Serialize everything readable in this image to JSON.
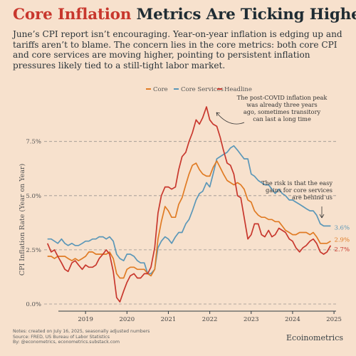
{
  "header": {
    "title_highlight": "Core Inflation",
    "title_rest": " Metrics Are Ticking Higher",
    "subtitle": "June’s CPI report isn’t encouraging. Year-on-year inflation is edging up and tariffs aren’t to blame. The concern lies in the core metrics: both core CPI and core services are moving higher, pointing to persistent inflation pressures likely tied to a still-tight labor market."
  },
  "footer": {
    "notes": "Notes: created on July 16, 2025, seasonally adjusted numbers",
    "source": "Source: FRED, US Bureau of Labor Statistics",
    "by": "By: @econometrics, econometrics.substack.com",
    "brand": "Ecoinometrics"
  },
  "colors": {
    "background": "#f7e1cd",
    "core": "#e07b24",
    "core_services": "#5b97b8",
    "headline": "#c8372d",
    "title_accent": "#c8372d",
    "text": "#1f2c33"
  },
  "chart_data": {
    "type": "line",
    "title": "",
    "xlabel": "",
    "ylabel": "CPI Inflation Rate (Year on Year)",
    "ylim": [
      0,
      9.1
    ],
    "yticks": [
      0,
      2.5,
      5.0,
      7.5
    ],
    "ytick_labels": [
      "0.0%",
      "2.5%",
      "5.0%",
      "7.5%"
    ],
    "xticks": [
      2019,
      2020,
      2021,
      2022,
      2023,
      2024,
      2025
    ],
    "xtick_labels": [
      "2019",
      "2020",
      "2021",
      "2022",
      "2023",
      "2024",
      "2025"
    ],
    "xlim": [
      2018.5,
      2025.55
    ],
    "grid": "horizontal dashed",
    "legend_position": "top-center",
    "series": [
      {
        "name": "Core",
        "color": "#e07b24",
        "end_label": "2.9%",
        "points": [
          [
            2018.58,
            2.2
          ],
          [
            2018.67,
            2.2
          ],
          [
            2018.75,
            2.1
          ],
          [
            2018.83,
            2.2
          ],
          [
            2018.92,
            2.2
          ],
          [
            2019.0,
            2.2
          ],
          [
            2019.08,
            2.1
          ],
          [
            2019.17,
            2.0
          ],
          [
            2019.25,
            2.1
          ],
          [
            2019.33,
            2.0
          ],
          [
            2019.42,
            2.1
          ],
          [
            2019.5,
            2.2
          ],
          [
            2019.58,
            2.4
          ],
          [
            2019.67,
            2.4
          ],
          [
            2019.75,
            2.3
          ],
          [
            2019.83,
            2.3
          ],
          [
            2019.92,
            2.3
          ],
          [
            2020.0,
            2.3
          ],
          [
            2020.08,
            2.4
          ],
          [
            2020.17,
            2.1
          ],
          [
            2020.25,
            1.4
          ],
          [
            2020.33,
            1.2
          ],
          [
            2020.42,
            1.2
          ],
          [
            2020.5,
            1.6
          ],
          [
            2020.58,
            1.7
          ],
          [
            2020.67,
            1.7
          ],
          [
            2020.75,
            1.6
          ],
          [
            2020.83,
            1.6
          ],
          [
            2020.92,
            1.6
          ],
          [
            2021.0,
            1.4
          ],
          [
            2021.08,
            1.3
          ],
          [
            2021.17,
            1.6
          ],
          [
            2021.25,
            3.0
          ],
          [
            2021.33,
            3.8
          ],
          [
            2021.42,
            4.5
          ],
          [
            2021.5,
            4.3
          ],
          [
            2021.58,
            4.0
          ],
          [
            2021.67,
            4.0
          ],
          [
            2021.75,
            4.6
          ],
          [
            2021.83,
            4.9
          ],
          [
            2021.92,
            5.5
          ],
          [
            2022.0,
            6.0
          ],
          [
            2022.08,
            6.4
          ],
          [
            2022.17,
            6.5
          ],
          [
            2022.25,
            6.2
          ],
          [
            2022.33,
            6.0
          ],
          [
            2022.42,
            5.9
          ],
          [
            2022.5,
            5.9
          ],
          [
            2022.58,
            6.3
          ],
          [
            2022.67,
            6.6
          ],
          [
            2022.75,
            6.3
          ],
          [
            2022.83,
            6.0
          ],
          [
            2022.92,
            5.7
          ],
          [
            2023.0,
            5.6
          ],
          [
            2023.08,
            5.5
          ],
          [
            2023.17,
            5.6
          ],
          [
            2023.25,
            5.5
          ],
          [
            2023.33,
            5.3
          ],
          [
            2023.42,
            4.8
          ],
          [
            2023.5,
            4.7
          ],
          [
            2023.58,
            4.3
          ],
          [
            2023.67,
            4.1
          ],
          [
            2023.75,
            4.0
          ],
          [
            2023.83,
            4.0
          ],
          [
            2023.92,
            3.9
          ],
          [
            2024.0,
            3.9
          ],
          [
            2024.08,
            3.8
          ],
          [
            2024.17,
            3.8
          ],
          [
            2024.25,
            3.6
          ],
          [
            2024.33,
            3.4
          ],
          [
            2024.42,
            3.3
          ],
          [
            2024.5,
            3.2
          ],
          [
            2024.58,
            3.2
          ],
          [
            2024.67,
            3.3
          ],
          [
            2024.75,
            3.3
          ],
          [
            2024.83,
            3.3
          ],
          [
            2024.92,
            3.2
          ],
          [
            2025.0,
            3.3
          ],
          [
            2025.08,
            3.1
          ],
          [
            2025.17,
            2.8
          ],
          [
            2025.25,
            2.8
          ],
          [
            2025.33,
            2.8
          ],
          [
            2025.42,
            2.9
          ]
        ]
      },
      {
        "name": "Core Services",
        "color": "#5b97b8",
        "end_label": "3.6%",
        "points": [
          [
            2018.58,
            3.0
          ],
          [
            2018.67,
            3.0
          ],
          [
            2018.75,
            2.9
          ],
          [
            2018.83,
            2.8
          ],
          [
            2018.92,
            3.0
          ],
          [
            2019.0,
            2.8
          ],
          [
            2019.08,
            2.7
          ],
          [
            2019.17,
            2.8
          ],
          [
            2019.25,
            2.7
          ],
          [
            2019.33,
            2.7
          ],
          [
            2019.42,
            2.8
          ],
          [
            2019.5,
            2.9
          ],
          [
            2019.58,
            2.9
          ],
          [
            2019.67,
            3.0
          ],
          [
            2019.75,
            3.0
          ],
          [
            2019.83,
            3.1
          ],
          [
            2019.92,
            3.1
          ],
          [
            2020.0,
            3.0
          ],
          [
            2020.08,
            3.1
          ],
          [
            2020.17,
            2.9
          ],
          [
            2020.25,
            2.3
          ],
          [
            2020.33,
            2.1
          ],
          [
            2020.42,
            2.0
          ],
          [
            2020.5,
            2.3
          ],
          [
            2020.58,
            2.3
          ],
          [
            2020.67,
            2.2
          ],
          [
            2020.75,
            2.0
          ],
          [
            2020.83,
            1.9
          ],
          [
            2020.92,
            1.9
          ],
          [
            2021.0,
            1.4
          ],
          [
            2021.08,
            1.4
          ],
          [
            2021.17,
            1.6
          ],
          [
            2021.25,
            2.6
          ],
          [
            2021.33,
            2.9
          ],
          [
            2021.42,
            3.1
          ],
          [
            2021.5,
            3.0
          ],
          [
            2021.58,
            2.8
          ],
          [
            2021.67,
            3.1
          ],
          [
            2021.75,
            3.3
          ],
          [
            2021.83,
            3.3
          ],
          [
            2021.92,
            3.7
          ],
          [
            2022.0,
            3.9
          ],
          [
            2022.08,
            4.3
          ],
          [
            2022.17,
            4.8
          ],
          [
            2022.25,
            5.1
          ],
          [
            2022.33,
            5.2
          ],
          [
            2022.42,
            5.6
          ],
          [
            2022.5,
            5.4
          ],
          [
            2022.58,
            6.0
          ],
          [
            2022.67,
            6.7
          ],
          [
            2022.75,
            6.8
          ],
          [
            2022.83,
            6.9
          ],
          [
            2022.92,
            7.0
          ],
          [
            2023.0,
            7.2
          ],
          [
            2023.08,
            7.3
          ],
          [
            2023.17,
            7.1
          ],
          [
            2023.25,
            6.9
          ],
          [
            2023.33,
            6.7
          ],
          [
            2023.42,
            6.7
          ],
          [
            2023.5,
            6.0
          ],
          [
            2023.58,
            5.9
          ],
          [
            2023.67,
            5.7
          ],
          [
            2023.75,
            5.6
          ],
          [
            2023.83,
            5.5
          ],
          [
            2023.92,
            5.5
          ],
          [
            2024.0,
            5.3
          ],
          [
            2024.08,
            5.1
          ],
          [
            2024.17,
            5.3
          ],
          [
            2024.25,
            5.1
          ],
          [
            2024.33,
            5.0
          ],
          [
            2024.42,
            4.8
          ],
          [
            2024.5,
            4.8
          ],
          [
            2024.58,
            4.7
          ],
          [
            2024.67,
            4.6
          ],
          [
            2024.75,
            4.5
          ],
          [
            2024.83,
            4.4
          ],
          [
            2024.92,
            4.3
          ],
          [
            2025.0,
            4.3
          ],
          [
            2025.08,
            4.1
          ],
          [
            2025.17,
            3.7
          ],
          [
            2025.25,
            3.6
          ],
          [
            2025.33,
            3.6
          ],
          [
            2025.42,
            3.6
          ]
        ]
      },
      {
        "name": "Headline",
        "color": "#c8372d",
        "end_label": "2.7%",
        "points": [
          [
            2018.58,
            2.8
          ],
          [
            2018.67,
            2.4
          ],
          [
            2018.75,
            2.5
          ],
          [
            2018.83,
            2.2
          ],
          [
            2018.92,
            1.9
          ],
          [
            2019.0,
            1.6
          ],
          [
            2019.08,
            1.5
          ],
          [
            2019.17,
            1.9
          ],
          [
            2019.25,
            2.0
          ],
          [
            2019.33,
            1.8
          ],
          [
            2019.42,
            1.6
          ],
          [
            2019.5,
            1.8
          ],
          [
            2019.58,
            1.7
          ],
          [
            2019.67,
            1.7
          ],
          [
            2019.75,
            1.8
          ],
          [
            2019.83,
            2.1
          ],
          [
            2019.92,
            2.3
          ],
          [
            2020.0,
            2.5
          ],
          [
            2020.08,
            2.3
          ],
          [
            2020.17,
            1.5
          ],
          [
            2020.25,
            0.3
          ],
          [
            2020.33,
            0.1
          ],
          [
            2020.42,
            0.6
          ],
          [
            2020.5,
            1.0
          ],
          [
            2020.58,
            1.3
          ],
          [
            2020.67,
            1.4
          ],
          [
            2020.75,
            1.2
          ],
          [
            2020.83,
            1.2
          ],
          [
            2020.92,
            1.4
          ],
          [
            2021.0,
            1.4
          ],
          [
            2021.08,
            1.7
          ],
          [
            2021.17,
            2.6
          ],
          [
            2021.25,
            4.2
          ],
          [
            2021.33,
            5.0
          ],
          [
            2021.42,
            5.4
          ],
          [
            2021.5,
            5.4
          ],
          [
            2021.58,
            5.3
          ],
          [
            2021.67,
            5.4
          ],
          [
            2021.75,
            6.2
          ],
          [
            2021.83,
            6.8
          ],
          [
            2021.92,
            7.0
          ],
          [
            2022.0,
            7.5
          ],
          [
            2022.08,
            7.9
          ],
          [
            2022.17,
            8.5
          ],
          [
            2022.25,
            8.3
          ],
          [
            2022.33,
            8.6
          ],
          [
            2022.42,
            9.1
          ],
          [
            2022.5,
            8.5
          ],
          [
            2022.58,
            8.3
          ],
          [
            2022.67,
            8.2
          ],
          [
            2022.75,
            7.7
          ],
          [
            2022.83,
            7.1
          ],
          [
            2022.92,
            6.5
          ],
          [
            2023.0,
            6.4
          ],
          [
            2023.08,
            6.0
          ],
          [
            2023.17,
            5.0
          ],
          [
            2023.25,
            4.9
          ],
          [
            2023.33,
            4.0
          ],
          [
            2023.42,
            3.0
          ],
          [
            2023.5,
            3.2
          ],
          [
            2023.58,
            3.7
          ],
          [
            2023.67,
            3.7
          ],
          [
            2023.75,
            3.2
          ],
          [
            2023.83,
            3.1
          ],
          [
            2023.92,
            3.4
          ],
          [
            2024.0,
            3.1
          ],
          [
            2024.08,
            3.2
          ],
          [
            2024.17,
            3.5
          ],
          [
            2024.25,
            3.4
          ],
          [
            2024.33,
            3.3
          ],
          [
            2024.42,
            3.0
          ],
          [
            2024.5,
            2.9
          ],
          [
            2024.58,
            2.6
          ],
          [
            2024.67,
            2.4
          ],
          [
            2024.75,
            2.6
          ],
          [
            2024.83,
            2.7
          ],
          [
            2024.92,
            2.9
          ],
          [
            2025.0,
            3.0
          ],
          [
            2025.08,
            2.8
          ],
          [
            2025.17,
            2.4
          ],
          [
            2025.25,
            2.3
          ],
          [
            2025.33,
            2.4
          ],
          [
            2025.42,
            2.7
          ]
        ]
      }
    ],
    "annotations": [
      {
        "lines": [
          "The post-COVID inflation peak",
          "was already three years",
          "ago, sometimes transitory",
          "can last a long time"
        ]
      },
      {
        "lines": [
          "The risk is that the easy",
          "gains for core services",
          "are behind us"
        ]
      }
    ]
  }
}
